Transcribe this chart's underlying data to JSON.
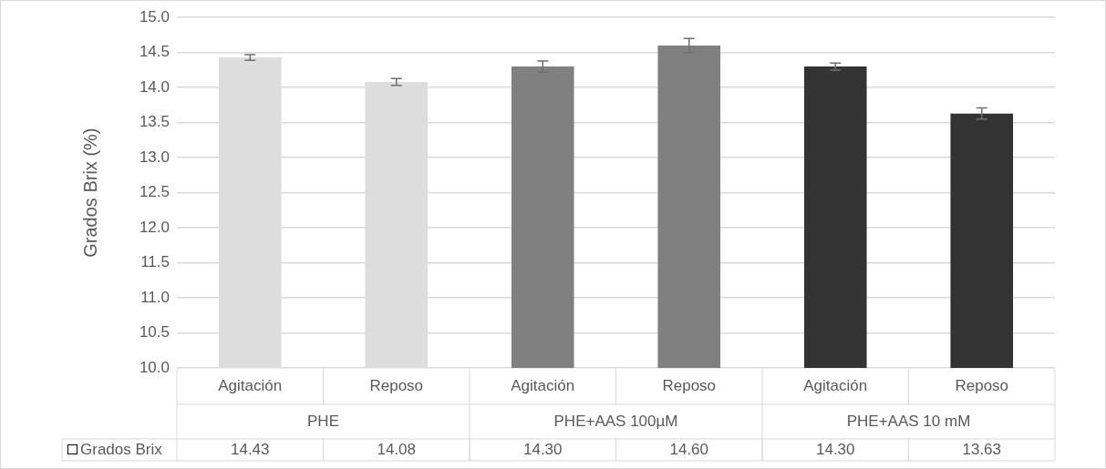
{
  "chart_data": {
    "type": "bar",
    "ylabel": "Grados Brix (%)",
    "categories": [
      "Agitación",
      "Reposo",
      "Agitación",
      "Reposo",
      "Agitación",
      "Reposo"
    ],
    "series": [
      {
        "name": "Grados Brix",
        "colors": [
          "#dddddd",
          "#dddddd",
          "#808080",
          "#808080",
          "#333333",
          "#333333"
        ],
        "values": [
          14.43,
          14.08,
          14.3,
          14.6,
          14.3,
          13.63
        ],
        "errors": [
          0.04,
          0.05,
          0.08,
          0.1,
          0.05,
          0.08
        ],
        "value_labels": [
          "14.43",
          "14.08",
          "14.30",
          "14.60",
          "14.30",
          "13.63"
        ]
      }
    ],
    "annotations": [
      "PHE",
      "PHE+AAS 100µM",
      "PHE+AAS 10 mM"
    ],
    "ylim": [
      10,
      15
    ],
    "yticks": [
      {
        "value": 10,
        "label": "10.0"
      },
      {
        "value": 10.5,
        "label": "10.5"
      },
      {
        "value": 11,
        "label": "11.0"
      },
      {
        "value": 11.5,
        "label": "11.5"
      },
      {
        "value": 12,
        "label": "12.0"
      },
      {
        "value": 12.5,
        "label": "12.5"
      },
      {
        "value": 13,
        "label": "13.0"
      },
      {
        "value": 13.5,
        "label": "13.5"
      },
      {
        "value": 14,
        "label": "14.0"
      },
      {
        "value": 14.5,
        "label": "14.5"
      },
      {
        "value": 15,
        "label": "15.0"
      }
    ],
    "grid": "y"
  }
}
